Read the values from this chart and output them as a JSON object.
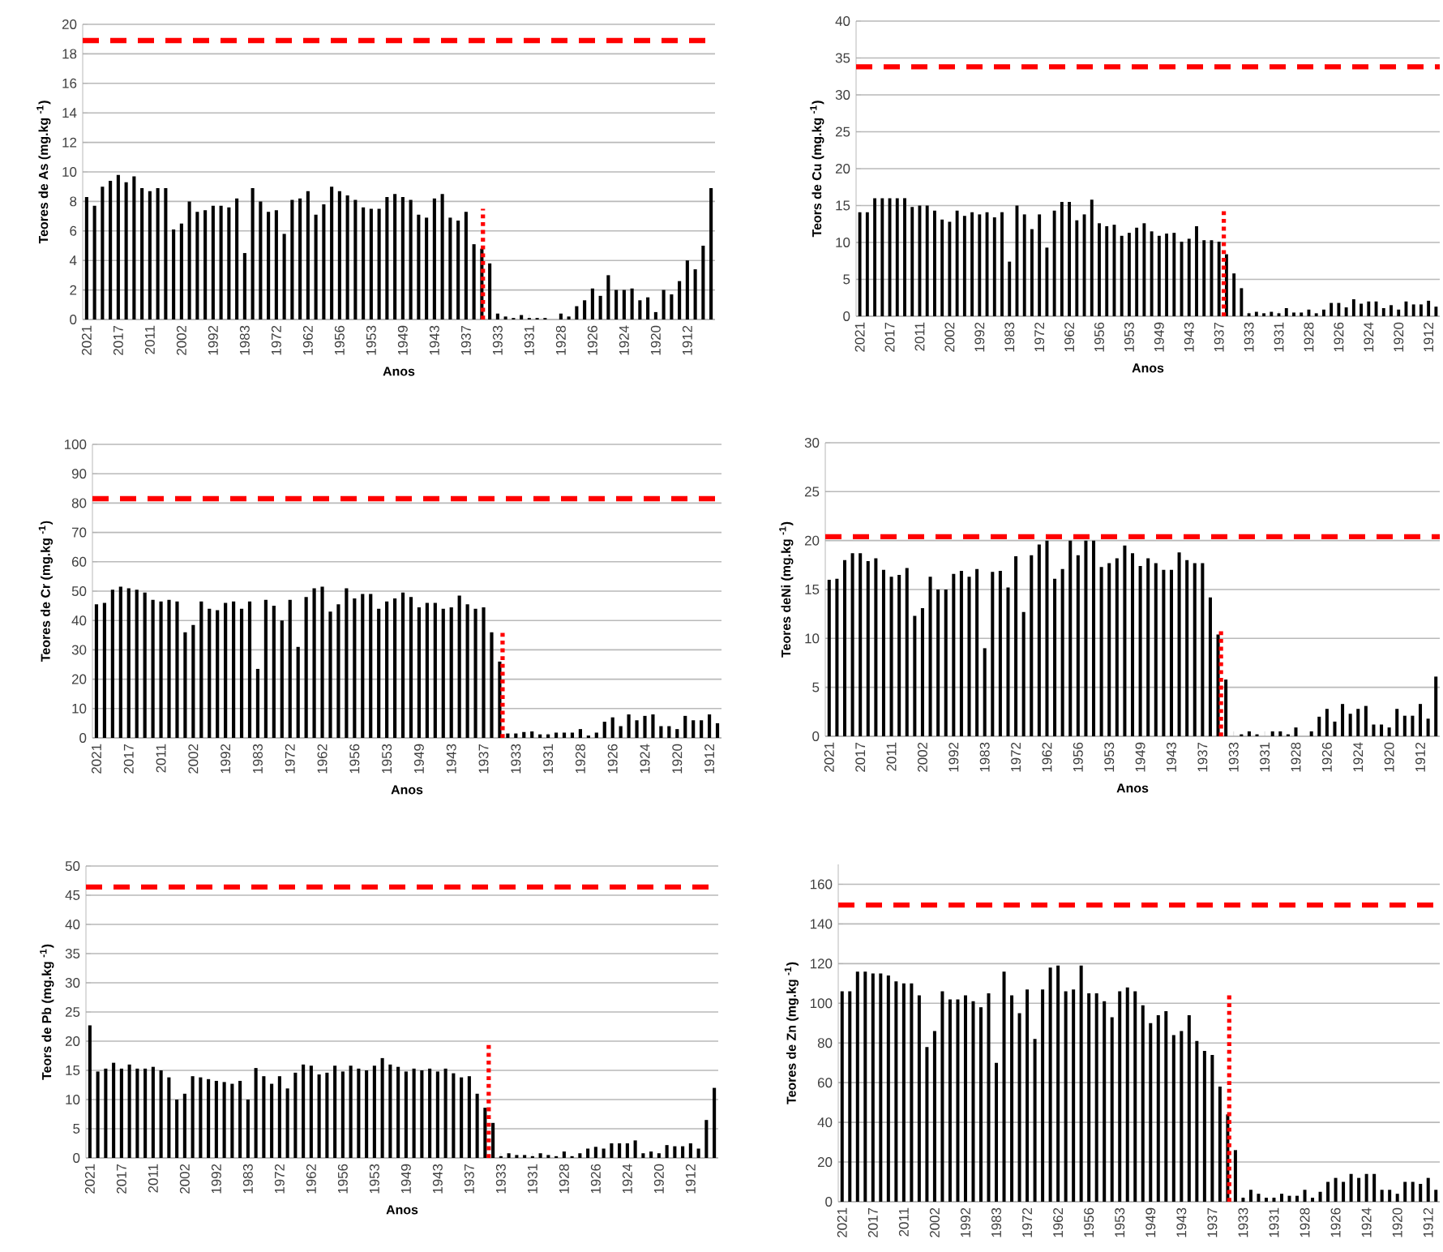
{
  "chart_data": [
    {
      "type": "bar",
      "ylabel": "Teores de As (mg.kg $^{-1}$)",
      "xlabel": "Anos",
      "categories": [
        "2021",
        null,
        null,
        null,
        "2017",
        null,
        null,
        null,
        "2011",
        null,
        null,
        null,
        "2002",
        null,
        null,
        null,
        "1992",
        null,
        null,
        null,
        "1983",
        null,
        null,
        null,
        "1972",
        null,
        null,
        null,
        "1962",
        null,
        null,
        null,
        "1956",
        null,
        null,
        null,
        "1953",
        null,
        null,
        null,
        "1949",
        null,
        null,
        null,
        "1943",
        null,
        null,
        null,
        "1937",
        null,
        null,
        null,
        "1933",
        null,
        null,
        null,
        "1931",
        null,
        null,
        null,
        "1928",
        null,
        null,
        null,
        "1926",
        null,
        null,
        null,
        "1924",
        null,
        null,
        null,
        "1920",
        null,
        null,
        null,
        "1912",
        null,
        null,
        null
      ],
      "series": [
        {
          "color": "#000000",
          "values": [
            8.3,
            7.7,
            9.0,
            9.4,
            9.8,
            9.3,
            9.7,
            8.9,
            8.7,
            8.9,
            8.9,
            6.1,
            6.5,
            8.0,
            7.3,
            7.4,
            7.7,
            7.7,
            7.6,
            8.2,
            4.5,
            8.9,
            8.0,
            7.3,
            7.4,
            5.8,
            8.1,
            8.2,
            8.7,
            7.1,
            7.8,
            9.0,
            8.7,
            8.4,
            8.1,
            7.6,
            7.5,
            7.5,
            8.3,
            8.5,
            8.3,
            8.1,
            7.1,
            6.9,
            8.2,
            8.5,
            6.9,
            6.7,
            7.3,
            5.1,
            4.8,
            3.8,
            0.4,
            0.2,
            0.1,
            0.3,
            0.1,
            0.1,
            0.1,
            0,
            0.4,
            0.2,
            0.9,
            1.3,
            2.1,
            1.6,
            3.0,
            2.0,
            2.0,
            2.1,
            1.3,
            1.5,
            0.5,
            2.0,
            1.7,
            2.6,
            4.0,
            3.4,
            5.0,
            8.9
          ]
        }
      ],
      "ylim": [
        0,
        20
      ],
      "yticks": [
        0,
        2,
        4,
        6,
        8,
        10,
        12,
        14,
        16,
        18,
        20
      ],
      "grid": "y",
      "ref_lines": [
        {
          "axis": "y",
          "value": 18.9,
          "color": "#ff0000",
          "line_style": "dashed"
        }
      ]
    },
    {
      "type": "bar",
      "ylabel": "Teors de Cu (mg.kg $^{-1}$)",
      "xlabel": "Anos",
      "categories": [
        "2021",
        null,
        null,
        null,
        "2017",
        null,
        null,
        null,
        "2011",
        null,
        null,
        null,
        "2002",
        null,
        null,
        null,
        "1992",
        null,
        null,
        null,
        "1983",
        null,
        null,
        null,
        "1972",
        null,
        null,
        null,
        "1962",
        null,
        null,
        null,
        "1956",
        null,
        null,
        null,
        "1953",
        null,
        null,
        null,
        "1949",
        null,
        null,
        null,
        "1943",
        null,
        null,
        null,
        "1937",
        null,
        null,
        null,
        "1933",
        null,
        null,
        null,
        "1931",
        null,
        null,
        null,
        "1928",
        null,
        null,
        null,
        "1926",
        null,
        null,
        null,
        "1924",
        null,
        null,
        null,
        "1920",
        null,
        null,
        null,
        "1912",
        null
      ],
      "series": [
        {
          "color": "#000000",
          "values": [
            14.1,
            14.1,
            16,
            16,
            16,
            16,
            16,
            14.8,
            15,
            15,
            14.3,
            13.1,
            12.8,
            14.3,
            13.6,
            14.1,
            13.8,
            14.1,
            13.4,
            14.1,
            7.4,
            15,
            13.8,
            11.8,
            13.8,
            9.3,
            14.3,
            15.5,
            15.5,
            13,
            13.8,
            15.8,
            12.6,
            12.2,
            12.4,
            10.9,
            11.3,
            12,
            12.6,
            11.5,
            10.9,
            11.2,
            11.3,
            10.1,
            10.5,
            12.2,
            10.3,
            10.3,
            10.1,
            8.4,
            5.8,
            3.8,
            0.4,
            0.6,
            0.4,
            0.6,
            0.4,
            1.1,
            0.5,
            0.5,
            0.9,
            0.4,
            0.9,
            1.8,
            1.8,
            1.2,
            2.3,
            1.7,
            2.0,
            2.0,
            1.1,
            1.5,
            0.9,
            2.0,
            1.6,
            1.6,
            2.1,
            1.3
          ]
        }
      ],
      "ylim": [
        0,
        40
      ],
      "yticks": [
        0,
        5,
        10,
        15,
        20,
        25,
        30,
        35,
        40
      ],
      "grid": "y",
      "ref_lines": [
        {
          "axis": "y",
          "value": 33.8,
          "color": "#ff0000",
          "line_style": "dashed"
        }
      ]
    },
    {
      "type": "bar",
      "ylabel": "Teores de Cr (mg.kg $^{-1}$)",
      "xlabel": "Anos",
      "categories": [
        "2021",
        null,
        null,
        null,
        "2017",
        null,
        null,
        null,
        "2011",
        null,
        null,
        null,
        "2002",
        null,
        null,
        null,
        "1992",
        null,
        null,
        null,
        "1983",
        null,
        null,
        null,
        "1972",
        null,
        null,
        null,
        "1962",
        null,
        null,
        null,
        "1956",
        null,
        null,
        null,
        "1953",
        null,
        null,
        null,
        "1949",
        null,
        null,
        null,
        "1943",
        null,
        null,
        null,
        "1937",
        null,
        null,
        null,
        "1933",
        null,
        null,
        null,
        "1931",
        null,
        null,
        null,
        "1928",
        null,
        null,
        null,
        "1926",
        null,
        null,
        null,
        "1924",
        null,
        null,
        null,
        "1920",
        null,
        null,
        null,
        "1912",
        null
      ],
      "series": [
        {
          "color": "#000000",
          "values": [
            45.5,
            46,
            50.5,
            51.5,
            51,
            50.5,
            49.5,
            47,
            46.5,
            47,
            46.5,
            36,
            38.5,
            46.5,
            44,
            43.5,
            46,
            46.5,
            44,
            46.5,
            23.5,
            47,
            45,
            40,
            47,
            31,
            48,
            51,
            51.5,
            43,
            45.5,
            51,
            47.5,
            49,
            49,
            44,
            46.5,
            47.5,
            49.5,
            48,
            44.5,
            46,
            46,
            44,
            44.5,
            48.5,
            45.5,
            44,
            44.5,
            36,
            26,
            1.5,
            1.5,
            2,
            2.2,
            1.2,
            1.2,
            1.8,
            1.8,
            1.8,
            3,
            0.8,
            1.8,
            5.5,
            7,
            4,
            8,
            6,
            7.5,
            8,
            4,
            4,
            3,
            7.5,
            6,
            6,
            8,
            5
          ]
        }
      ],
      "ylim": [
        0,
        100
      ],
      "yticks": [
        0,
        10,
        20,
        30,
        40,
        50,
        60,
        70,
        80,
        90,
        100
      ],
      "grid": "y",
      "ref_lines": [
        {
          "axis": "y",
          "value": 81.5,
          "color": "#ff0000",
          "line_style": "dashed"
        }
      ]
    },
    {
      "type": "bar",
      "ylabel": "Teores deNi (mg.kg $^{-1}$)",
      "xlabel": "Anos",
      "categories": [
        "2021",
        null,
        null,
        null,
        "2017",
        null,
        null,
        null,
        "2011",
        null,
        null,
        null,
        "2002",
        null,
        null,
        null,
        "1992",
        null,
        null,
        null,
        "1983",
        null,
        null,
        null,
        "1972",
        null,
        null,
        null,
        "1962",
        null,
        null,
        null,
        "1956",
        null,
        null,
        null,
        "1953",
        null,
        null,
        null,
        "1949",
        null,
        null,
        null,
        "1943",
        null,
        null,
        null,
        "1937",
        null,
        null,
        null,
        "1933",
        null,
        null,
        null,
        "1931",
        null,
        null,
        null,
        "1928",
        null,
        null,
        null,
        "1926",
        null,
        null,
        null,
        "1924",
        null,
        null,
        null,
        "1920",
        null,
        null,
        null,
        "1912",
        null,
        null
      ],
      "series": [
        {
          "color": "#000000",
          "values": [
            16,
            16.1,
            18,
            18.7,
            18.7,
            17.9,
            18.2,
            17,
            16.3,
            16.5,
            17.2,
            12.3,
            13.1,
            16.3,
            15,
            15,
            16.6,
            16.9,
            16.3,
            17.1,
            9,
            16.8,
            16.9,
            15.2,
            18.4,
            12.7,
            18.5,
            19.6,
            20,
            16.1,
            17.1,
            20,
            18.5,
            20,
            20,
            17.3,
            17.7,
            18.2,
            19.5,
            18.7,
            17.4,
            18.2,
            17.7,
            17,
            17,
            18.8,
            18,
            17.7,
            17.7,
            14.2,
            10.4,
            5.8,
            0,
            0.2,
            0.5,
            0.2,
            0,
            0.5,
            0.5,
            0.2,
            0.9,
            0,
            0.5,
            2,
            2.8,
            1.5,
            3.3,
            2.3,
            2.8,
            3.1,
            1.2,
            1.2,
            0.9,
            2.8,
            2.1,
            2.1,
            3.3,
            1.8,
            6.1
          ]
        }
      ],
      "ylim": [
        0,
        30
      ],
      "yticks": [
        0,
        5,
        10,
        15,
        20,
        25,
        30
      ],
      "grid": "y",
      "ref_lines": [
        {
          "axis": "y",
          "value": 20.4,
          "color": "#ff0000",
          "line_style": "dashed"
        }
      ]
    },
    {
      "type": "bar",
      "ylabel": "Teors de Pb (mg.kg $^{-1}$)",
      "xlabel": "Anos",
      "categories": [
        "2021",
        null,
        null,
        null,
        "2017",
        null,
        null,
        null,
        "2011",
        null,
        null,
        null,
        "2002",
        null,
        null,
        null,
        "1992",
        null,
        null,
        null,
        "1983",
        null,
        null,
        null,
        "1972",
        null,
        null,
        null,
        "1962",
        null,
        null,
        null,
        "1956",
        null,
        null,
        null,
        "1953",
        null,
        null,
        null,
        "1949",
        null,
        null,
        null,
        "1943",
        null,
        null,
        null,
        "1937",
        null,
        null,
        null,
        "1933",
        null,
        null,
        null,
        "1931",
        null,
        null,
        null,
        "1928",
        null,
        null,
        null,
        "1926",
        null,
        null,
        null,
        "1924",
        null,
        null,
        null,
        "1920",
        null,
        null,
        null,
        "1912",
        null,
        null,
        null
      ],
      "series": [
        {
          "color": "#000000",
          "values": [
            22.7,
            14.8,
            15.3,
            16.3,
            15.3,
            16,
            15.3,
            15.3,
            15.6,
            15,
            13.8,
            10,
            11,
            14,
            13.8,
            13.5,
            13.2,
            13,
            12.7,
            13.2,
            10,
            15.4,
            14,
            12.7,
            14,
            11.9,
            14.6,
            16,
            15.8,
            14.3,
            14.6,
            15.8,
            14.8,
            15.8,
            15.3,
            15,
            15.8,
            17.1,
            16,
            15.6,
            14.8,
            15.3,
            15,
            15.3,
            14.8,
            15.3,
            14.5,
            13.8,
            14,
            11,
            8.6,
            6,
            0.3,
            0.8,
            0.5,
            0.5,
            0.3,
            0.8,
            0.5,
            0.3,
            1.1,
            0.3,
            0.8,
            1.6,
            1.9,
            1.6,
            2.5,
            2.5,
            2.5,
            3,
            0.8,
            1.1,
            0.8,
            2.2,
            2,
            2,
            2.5,
            1.6,
            6.5,
            12
          ]
        }
      ],
      "ylim": [
        0,
        50
      ],
      "yticks": [
        0,
        5,
        10,
        15,
        20,
        25,
        30,
        35,
        40,
        45,
        50
      ],
      "grid": "y",
      "ref_lines": [
        {
          "axis": "y",
          "value": 46.4,
          "color": "#ff0000",
          "line_style": "dashed"
        }
      ]
    },
    {
      "type": "bar",
      "ylabel": "Teores de Zn  (mg.kg $^{-1}$)",
      "categories": [
        "2021",
        null,
        null,
        null,
        "2017",
        null,
        null,
        null,
        "2011",
        null,
        null,
        null,
        "2002",
        null,
        null,
        null,
        "1992",
        null,
        null,
        null,
        "1983",
        null,
        null,
        null,
        "1972",
        null,
        null,
        null,
        "1962",
        null,
        null,
        null,
        "1956",
        null,
        null,
        null,
        "1953",
        null,
        null,
        null,
        "1949",
        null,
        null,
        null,
        "1943",
        null,
        null,
        null,
        "1937",
        null,
        null,
        null,
        "1933",
        null,
        null,
        null,
        "1931",
        null,
        null,
        null,
        "1928",
        null,
        null,
        null,
        "1926",
        null,
        null,
        null,
        "1924",
        null,
        null,
        null,
        "1920",
        null,
        null,
        null,
        "1912",
        null
      ],
      "series": [
        {
          "color": "#000000",
          "values": [
            106,
            106,
            116,
            116,
            115,
            115,
            114,
            111,
            110,
            110,
            104,
            78,
            86,
            106,
            102,
            102,
            104,
            101,
            98,
            105,
            70,
            116,
            104,
            95,
            107,
            82,
            107,
            118,
            119,
            106,
            107,
            119,
            105,
            105,
            101,
            93,
            106,
            108,
            106,
            99,
            90,
            94,
            96,
            84,
            86,
            94,
            81,
            76,
            74,
            58,
            44,
            26,
            2,
            6,
            4,
            2,
            2,
            4,
            3,
            3,
            6,
            2,
            5,
            10,
            12,
            10,
            14,
            12,
            14,
            14,
            6,
            6,
            4,
            10,
            10,
            9,
            12,
            6
          ]
        }
      ],
      "ylim": [
        0,
        170
      ],
      "yticks": [
        0,
        20,
        40,
        60,
        80,
        100,
        120,
        140,
        160
      ],
      "grid": "y",
      "ref_lines": [
        {
          "axis": "y",
          "value": 149.5,
          "color": "#ff0000",
          "line_style": "dashed"
        }
      ]
    }
  ]
}
